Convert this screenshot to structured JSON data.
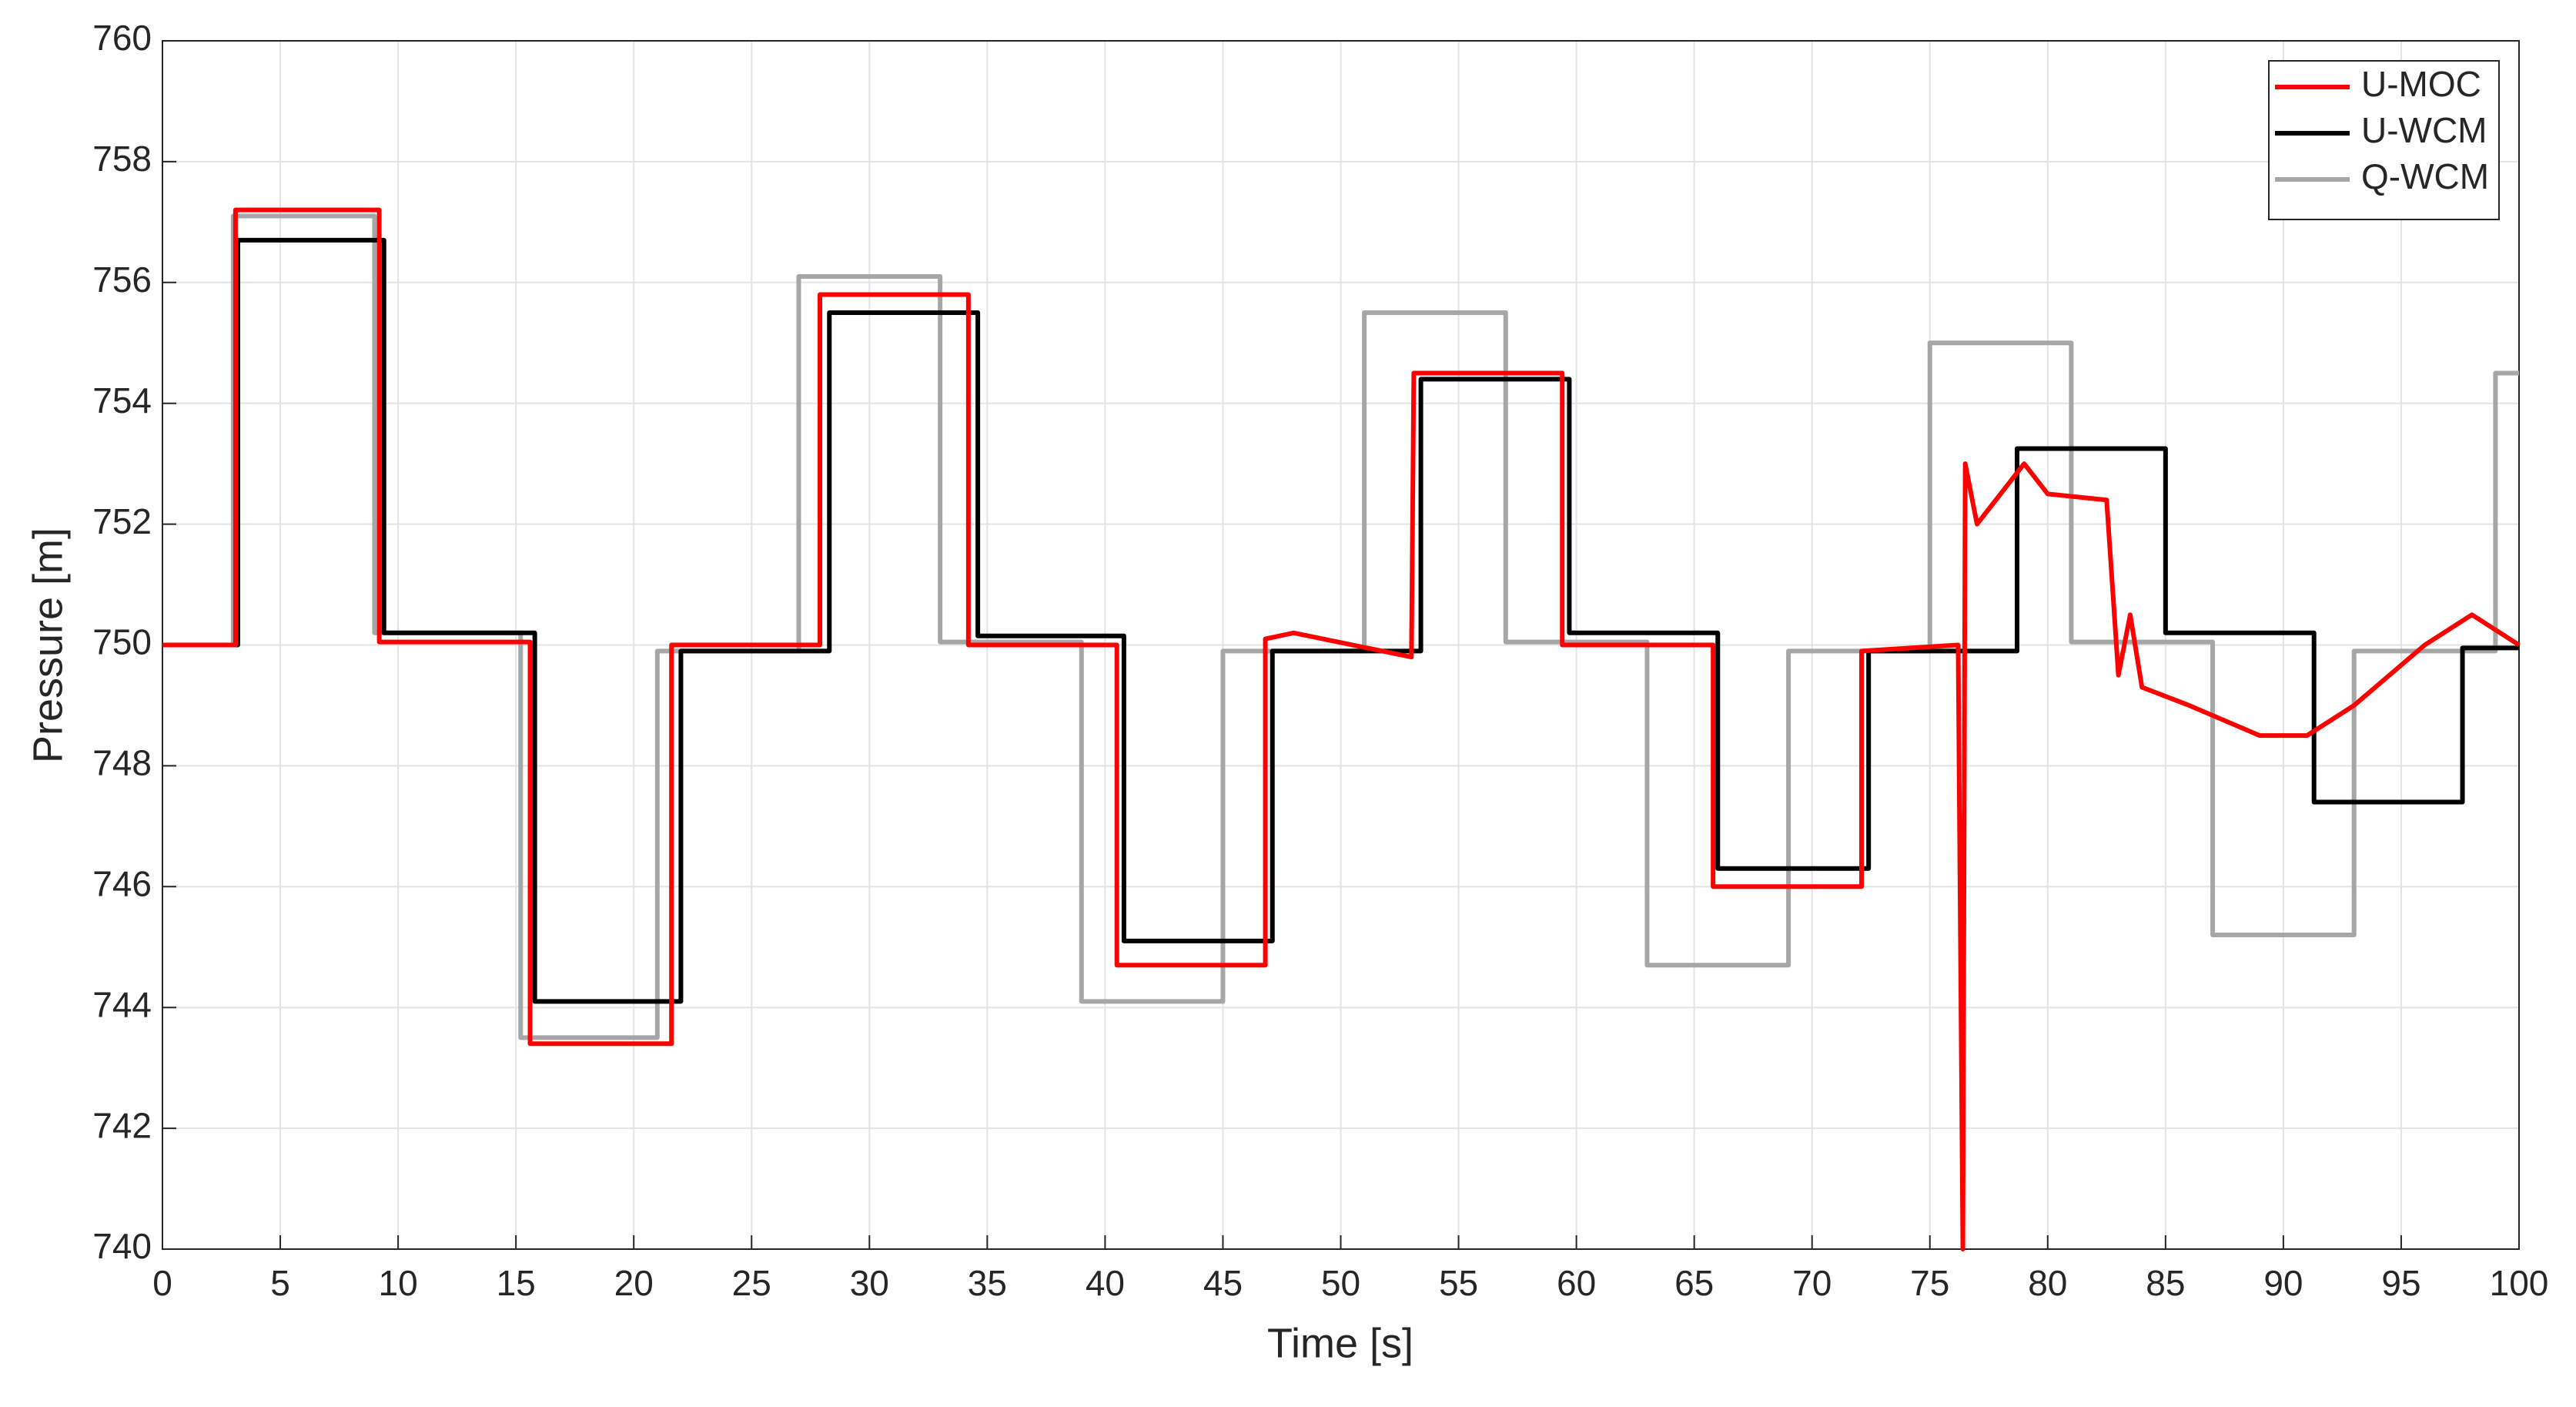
{
  "chart_data": {
    "type": "line",
    "xlabel": "Time [s]",
    "ylabel": "Pressure [m]",
    "xlim": [
      0,
      100
    ],
    "xticks": [
      0,
      5,
      10,
      15,
      20,
      25,
      30,
      35,
      40,
      45,
      50,
      55,
      60,
      65,
      70,
      75,
      80,
      85,
      90,
      95,
      100
    ],
    "ylim": [
      740,
      760
    ],
    "yticks": [
      740,
      742,
      744,
      746,
      748,
      750,
      752,
      754,
      756,
      758,
      760
    ],
    "grid": true,
    "legend": "upper right",
    "series": [
      {
        "name": "U-MOC",
        "color": "#ff0000",
        "x": [
          0,
          3.1,
          3.1,
          9.2,
          9.2,
          15.6,
          15.6,
          21.6,
          21.6,
          27.9,
          27.9,
          34.2,
          34.2,
          40.5,
          40.5,
          46.8,
          46.8,
          48,
          53,
          53.1,
          59.4,
          59.4,
          65.8,
          65.8,
          72.1,
          72.1,
          76.2,
          76.4,
          76.5,
          77,
          78,
          79,
          80,
          82.5,
          83,
          83.5,
          84,
          86,
          89,
          91,
          93,
          96,
          98,
          100
        ],
        "values": [
          750,
          750,
          757.2,
          757.2,
          750.05,
          750.05,
          743.4,
          743.4,
          750,
          750,
          755.8,
          755.8,
          750,
          750,
          744.7,
          744.7,
          750.1,
          750.2,
          749.8,
          754.5,
          754.5,
          750,
          750,
          746,
          746,
          749.9,
          750,
          740,
          753,
          752,
          752.5,
          753,
          752.5,
          752.4,
          749.5,
          750.5,
          749.3,
          749,
          748.5,
          748.5,
          749,
          750,
          750.5,
          750
        ]
      },
      {
        "name": "U-WCM",
        "color": "#000000",
        "x": [
          0,
          3.2,
          3.2,
          9.4,
          9.4,
          15.8,
          15.8,
          22,
          22,
          28.3,
          28.3,
          34.6,
          34.6,
          40.8,
          40.8,
          47.1,
          47.1,
          53.4,
          53.4,
          59.7,
          59.7,
          66,
          66,
          72.4,
          72.4,
          78.7,
          78.7,
          85,
          85,
          91.3,
          91.3,
          97.6,
          97.6,
          100
        ],
        "values": [
          750,
          750,
          756.7,
          756.7,
          750.2,
          750.2,
          744.1,
          744.1,
          749.9,
          749.9,
          755.5,
          755.5,
          750.15,
          750.15,
          745.1,
          745.1,
          749.9,
          749.9,
          754.4,
          754.4,
          750.2,
          750.2,
          746.3,
          746.3,
          749.9,
          749.9,
          753.25,
          753.25,
          750.2,
          750.2,
          747.4,
          747.4,
          749.95,
          749.95
        ]
      },
      {
        "name": "Q-WCM",
        "color": "#a6a6a6",
        "x": [
          0,
          3,
          3,
          9,
          9,
          15.2,
          15.2,
          21,
          21,
          27,
          27,
          33,
          33,
          39,
          39,
          45,
          45,
          51,
          51,
          57,
          57,
          63,
          63,
          69,
          69,
          75,
          75,
          81,
          81,
          87,
          87,
          93,
          93,
          99,
          99,
          100
        ],
        "values": [
          750,
          750,
          757.1,
          757.1,
          750.2,
          750.2,
          743.5,
          743.5,
          749.9,
          749.9,
          756.1,
          756.1,
          750.05,
          750.05,
          744.1,
          744.1,
          749.9,
          749.9,
          755.5,
          755.5,
          750.05,
          750.05,
          744.7,
          744.7,
          749.9,
          749.9,
          755,
          755,
          750.05,
          750.05,
          745.2,
          745.2,
          749.9,
          749.9,
          754.5,
          754.5
        ]
      }
    ]
  }
}
